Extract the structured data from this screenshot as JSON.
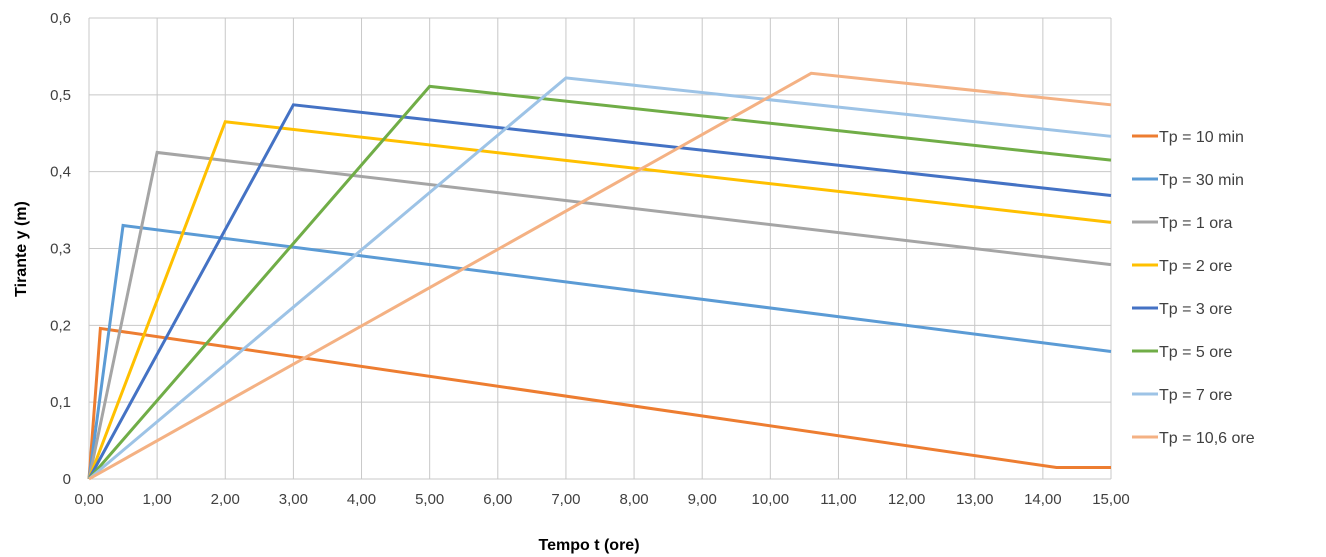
{
  "chart_data": {
    "type": "line",
    "title": "",
    "xlabel": "Tempo t (ore)",
    "ylabel": "Tirante y (m)",
    "xlim": [
      0,
      15
    ],
    "ylim": [
      0,
      0.6
    ],
    "x_ticks": [
      0,
      1,
      2,
      3,
      4,
      5,
      6,
      7,
      8,
      9,
      10,
      11,
      12,
      13,
      14,
      15
    ],
    "x_tick_labels": [
      "0,00",
      "1,00",
      "2,00",
      "3,00",
      "4,00",
      "5,00",
      "6,00",
      "7,00",
      "8,00",
      "9,00",
      "10,00",
      "11,00",
      "12,00",
      "13,00",
      "14,00",
      "15,00"
    ],
    "y_ticks": [
      0,
      0.1,
      0.2,
      0.3,
      0.4,
      0.5,
      0.6
    ],
    "y_tick_labels": [
      "0",
      "0,1",
      "0,2",
      "0,3",
      "0,4",
      "0,5",
      "0,6"
    ],
    "grid": true,
    "legend_position": "right",
    "series": [
      {
        "name": "Tp = 10 min",
        "color": "#ED7D31",
        "x": [
          0,
          0.167,
          14.2,
          15
        ],
        "y": [
          0,
          0.196,
          0.015,
          0.015
        ]
      },
      {
        "name": "Tp = 30 min",
        "color": "#5B9BD5",
        "x": [
          0,
          0.5,
          15
        ],
        "y": [
          0,
          0.33,
          0.166
        ]
      },
      {
        "name": "Tp = 1 ora",
        "color": "#A5A5A5",
        "x": [
          0,
          1,
          15
        ],
        "y": [
          0,
          0.425,
          0.279
        ]
      },
      {
        "name": "Tp = 2 ore",
        "color": "#FFC000",
        "x": [
          0,
          2,
          15
        ],
        "y": [
          0,
          0.465,
          0.334
        ]
      },
      {
        "name": "Tp = 3 ore",
        "color": "#4472C4",
        "x": [
          0,
          3,
          15
        ],
        "y": [
          0,
          0.487,
          0.369
        ]
      },
      {
        "name": "Tp = 5 ore",
        "color": "#70AD47",
        "x": [
          0,
          5,
          15
        ],
        "y": [
          0,
          0.511,
          0.415
        ]
      },
      {
        "name": "Tp = 7 ore",
        "color": "#9DC3E6",
        "x": [
          0,
          7,
          15
        ],
        "y": [
          0,
          0.522,
          0.446
        ]
      },
      {
        "name": "Tp = 10,6 ore",
        "color": "#F4B183",
        "x": [
          0,
          10.6,
          15
        ],
        "y": [
          0,
          0.528,
          0.487
        ]
      }
    ]
  }
}
